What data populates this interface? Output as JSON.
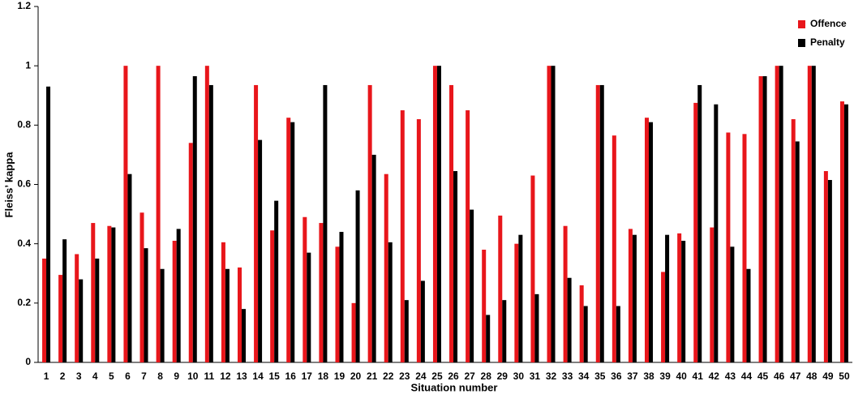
{
  "chart_data": {
    "type": "bar",
    "xlabel": "Situation number",
    "ylabel": "Fleiss’ kappa",
    "categories": [
      "1",
      "2",
      "3",
      "4",
      "5",
      "6",
      "7",
      "8",
      "9",
      "10",
      "11",
      "12",
      "13",
      "14",
      "15",
      "16",
      "17",
      "18",
      "19",
      "20",
      "21",
      "22",
      "23",
      "24",
      "25",
      "26",
      "27",
      "28",
      "29",
      "30",
      "31",
      "32",
      "33",
      "34",
      "35",
      "36",
      "37",
      "38",
      "39",
      "40",
      "41",
      "42",
      "43",
      "44",
      "45",
      "46",
      "47",
      "48",
      "49",
      "50"
    ],
    "series": [
      {
        "name": "Offence",
        "color": "#e8161b",
        "values": [
          0.35,
          0.295,
          0.365,
          0.47,
          0.46,
          1.0,
          0.505,
          1.0,
          0.41,
          0.74,
          1.0,
          0.405,
          0.32,
          0.935,
          0.445,
          0.825,
          0.49,
          0.47,
          0.39,
          0.2,
          0.935,
          0.635,
          0.85,
          0.82,
          1.0,
          0.935,
          0.85,
          0.38,
          0.495,
          0.4,
          0.63,
          1.0,
          0.46,
          0.26,
          0.935,
          0.765,
          0.45,
          0.825,
          0.305,
          0.435,
          0.875,
          0.455,
          0.775,
          0.77,
          0.965,
          1.0,
          0.82,
          1.0,
          0.645,
          0.88
        ]
      },
      {
        "name": "Penalty",
        "color": "#000000",
        "values": [
          0.93,
          0.415,
          0.28,
          0.35,
          0.455,
          0.635,
          0.385,
          0.315,
          0.45,
          0.965,
          0.935,
          0.315,
          0.18,
          0.75,
          0.545,
          0.81,
          0.37,
          0.935,
          0.44,
          0.58,
          0.7,
          0.405,
          0.21,
          0.275,
          1.0,
          0.645,
          0.515,
          0.16,
          0.21,
          0.43,
          0.23,
          1.0,
          0.285,
          0.19,
          0.935,
          0.19,
          0.43,
          0.81,
          0.43,
          0.41,
          0.935,
          0.87,
          0.39,
          0.315,
          0.965,
          1.0,
          0.745,
          1.0,
          0.615,
          0.87
        ]
      }
    ],
    "ylim": [
      0,
      1.2
    ],
    "yticks": [
      0,
      0.2,
      0.4,
      0.6,
      0.8,
      1,
      1.2
    ],
    "grid": false,
    "legend": "top-right"
  }
}
